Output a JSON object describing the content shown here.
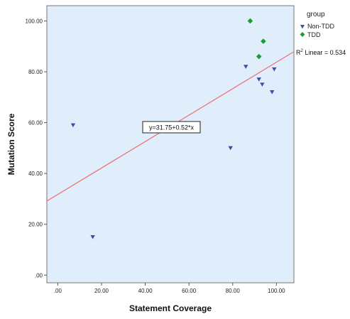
{
  "chart_data": {
    "type": "scatter",
    "xlabel": "Statement Coverage",
    "ylabel": "Mutation Score",
    "xlim": [
      -5,
      108
    ],
    "ylim": [
      -3,
      106
    ],
    "x_ticks": [
      0,
      20,
      40,
      60,
      80,
      100
    ],
    "x_tick_labels": [
      ".00",
      "20.00",
      "40.00",
      "60.00",
      "80.00",
      "100.00"
    ],
    "y_ticks": [
      0,
      20,
      40,
      60,
      80,
      100
    ],
    "y_tick_labels": [
      ".00",
      "20.00",
      "40.00",
      "60.00",
      "80.00",
      "100.00"
    ],
    "grid": false,
    "legend_placement": "top-right, outside plot",
    "legend_title": "group",
    "plot_background": "#dfeefa",
    "series": [
      {
        "name": "Non-TDD",
        "marker": "triangle-down",
        "color": "#3b4ea8",
        "points": [
          {
            "x": 7,
            "y": 59
          },
          {
            "x": 16,
            "y": 15
          },
          {
            "x": 79,
            "y": 50
          },
          {
            "x": 86,
            "y": 82
          },
          {
            "x": 92,
            "y": 77
          },
          {
            "x": 93.5,
            "y": 75
          },
          {
            "x": 98,
            "y": 72
          },
          {
            "x": 99,
            "y": 81
          }
        ]
      },
      {
        "name": "TDD",
        "marker": "diamond",
        "color": "#1f9a3a",
        "points": [
          {
            "x": 88,
            "y": 100
          },
          {
            "x": 92,
            "y": 86
          },
          {
            "x": 94,
            "y": 92
          }
        ]
      }
    ],
    "fit_line": {
      "intercept": 31.75,
      "slope": 0.52,
      "color": "#f06a78",
      "equation_label": "y=31.75+0.52*x",
      "r2_label_prefix": "R",
      "r2_label_sup": "2",
      "r2_label_suffix": " Linear = 0.534"
    }
  }
}
